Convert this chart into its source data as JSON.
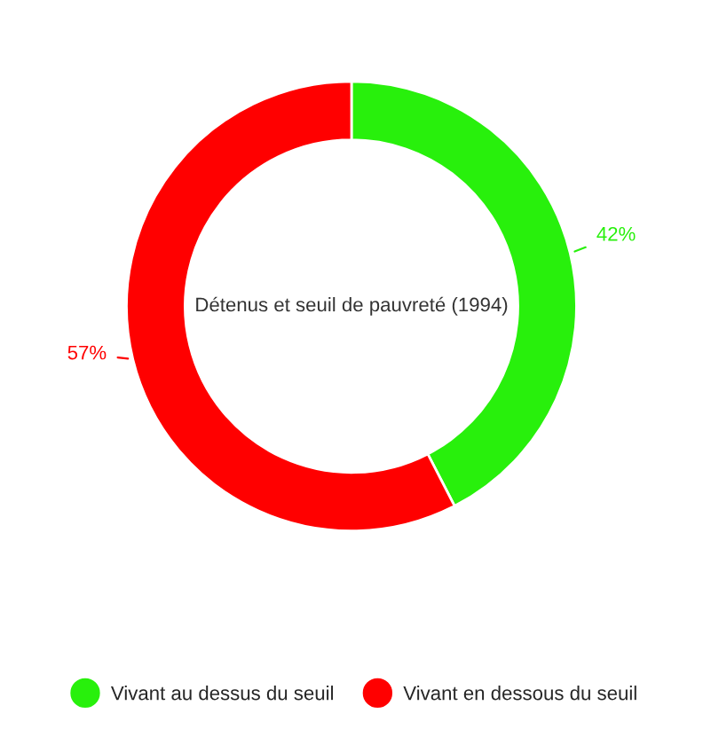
{
  "chart_data": {
    "type": "donut",
    "title": "Détenus et seuil de pauvreté (1994)",
    "categories": [
      "Vivant au dessus du seuil",
      "Vivant en dessous du seuil"
    ],
    "values": [
      42,
      57
    ],
    "colors": [
      "#28f00c",
      "#ff0000"
    ],
    "value_labels": [
      "42%",
      "57%"
    ],
    "legend": "bottom"
  }
}
